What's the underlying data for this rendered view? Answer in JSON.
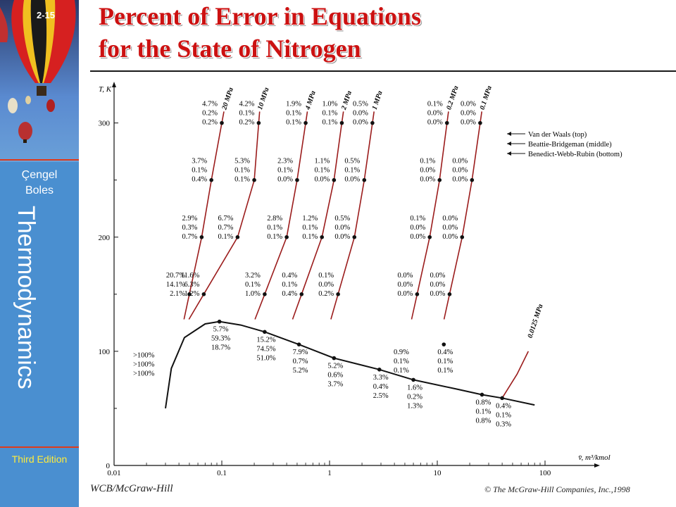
{
  "slide": {
    "number": "2-15",
    "title_line1": "Percent of Error in Equations",
    "title_line2": "for the State of Nitrogen",
    "book_author1": "Çengel",
    "book_author2": "Boles",
    "book_title": "Thermodynamics",
    "edition": "Third Edition",
    "publisher": "WCB/McGraw-Hill",
    "copyright": "© The McGraw-Hill Companies, Inc.,1998"
  },
  "colors": {
    "sidebar": "#4a8fd0",
    "title": "#cc1111",
    "isobar": "#9b1c1c",
    "dome": "#111111",
    "edition": "#ffeb3b"
  },
  "chart_data": {
    "type": "scatter",
    "xlabel": "v̄, m³/kmol",
    "ylabel": "T, K",
    "xscale": "log",
    "xlim": [
      0.01,
      100
    ],
    "ylim": [
      0,
      330
    ],
    "xticks": [
      "0.01",
      "0.1",
      "1",
      "10",
      "100"
    ],
    "yticks": [
      "0",
      "100",
      "200",
      "300"
    ],
    "legend": [
      "Van der Waals (top)",
      "Beattie-Bridgeman (middle)",
      "Benedict-Webb-Rubin (bottom)"
    ],
    "isobars": [
      {
        "label": "20 MPa",
        "points": [
          [
            0.05,
            150
          ],
          [
            0.065,
            200
          ],
          [
            0.08,
            250
          ],
          [
            0.1,
            300
          ]
        ]
      },
      {
        "label": "10 MPa",
        "points": [
          [
            0.068,
            150
          ],
          [
            0.14,
            200
          ],
          [
            0.2,
            250
          ],
          [
            0.22,
            300
          ]
        ]
      },
      {
        "label": "4 MPa",
        "points": [
          [
            0.25,
            150
          ],
          [
            0.4,
            200
          ],
          [
            0.5,
            250
          ],
          [
            0.6,
            300
          ]
        ]
      },
      {
        "label": "2 MPa",
        "points": [
          [
            0.55,
            150
          ],
          [
            0.85,
            200
          ],
          [
            1.1,
            250
          ],
          [
            1.3,
            300
          ]
        ]
      },
      {
        "label": "1 MPa",
        "points": [
          [
            1.2,
            150
          ],
          [
            1.7,
            200
          ],
          [
            2.1,
            250
          ],
          [
            2.5,
            300
          ]
        ]
      },
      {
        "label": "0.2 MPa",
        "points": [
          [
            6.5,
            150
          ],
          [
            8.5,
            200
          ],
          [
            10.5,
            250
          ],
          [
            12.3,
            300
          ]
        ]
      },
      {
        "label": "0.1 MPa",
        "points": [
          [
            13,
            150
          ],
          [
            17,
            200
          ],
          [
            21,
            250
          ],
          [
            25,
            300
          ]
        ]
      },
      {
        "label": "0.0125 MPa",
        "points": []
      }
    ],
    "error_labels": [
      {
        "x": 0.05,
        "y": 150,
        "values": [
          "20.7%",
          "14.1%",
          "2.1%"
        ]
      },
      {
        "x": 0.065,
        "y": 200,
        "values": [
          "2.9%",
          "0.3%",
          "0.7%"
        ]
      },
      {
        "x": 0.08,
        "y": 250,
        "values": [
          "3.7%",
          "0.1%",
          "0.4%"
        ]
      },
      {
        "x": 0.1,
        "y": 300,
        "values": [
          "4.7%",
          "0.2%",
          "0.2%"
        ]
      },
      {
        "x": 0.068,
        "y": 150,
        "values": [
          "11.6%",
          "6.3%",
          "1.2%"
        ]
      },
      {
        "x": 0.14,
        "y": 200,
        "values": [
          "6.7%",
          "0.7%",
          "0.1%"
        ]
      },
      {
        "x": 0.2,
        "y": 250,
        "values": [
          "5.3%",
          "0.1%",
          "0.1%"
        ]
      },
      {
        "x": 0.22,
        "y": 300,
        "values": [
          "4.2%",
          "0.1%",
          "0.2%"
        ]
      },
      {
        "x": 0.25,
        "y": 150,
        "values": [
          "3.2%",
          "0.1%",
          "1.0%"
        ]
      },
      {
        "x": 0.4,
        "y": 200,
        "values": [
          "2.8%",
          "0.1%",
          "0.1%"
        ]
      },
      {
        "x": 0.5,
        "y": 250,
        "values": [
          "2.3%",
          "0.1%",
          "0.0%"
        ]
      },
      {
        "x": 0.6,
        "y": 300,
        "values": [
          "1.9%",
          "0.1%",
          "0.1%"
        ]
      },
      {
        "x": 0.55,
        "y": 150,
        "values": [
          "0.4%",
          "0.1%",
          "0.4%"
        ]
      },
      {
        "x": 0.85,
        "y": 200,
        "values": [
          "1.2%",
          "0.1%",
          "0.1%"
        ]
      },
      {
        "x": 1.1,
        "y": 250,
        "values": [
          "1.1%",
          "0.1%",
          "0.0%"
        ]
      },
      {
        "x": 1.3,
        "y": 300,
        "values": [
          "1.0%",
          "0.1%",
          "0.1%"
        ]
      },
      {
        "x": 1.2,
        "y": 150,
        "values": [
          "0.1%",
          "0.0%",
          "0.2%"
        ]
      },
      {
        "x": 1.7,
        "y": 200,
        "values": [
          "0.5%",
          "0.0%",
          "0.0%"
        ]
      },
      {
        "x": 2.1,
        "y": 250,
        "values": [
          "0.5%",
          "0.1%",
          "0.0%"
        ]
      },
      {
        "x": 2.5,
        "y": 300,
        "values": [
          "0.5%",
          "0.0%",
          "0.0%"
        ]
      },
      {
        "x": 6.5,
        "y": 150,
        "values": [
          "0.0%",
          "0.0%",
          "0.0%"
        ]
      },
      {
        "x": 8.5,
        "y": 200,
        "values": [
          "0.1%",
          "0.0%",
          "0.0%"
        ]
      },
      {
        "x": 10.5,
        "y": 250,
        "values": [
          "0.1%",
          "0.0%",
          "0.0%"
        ]
      },
      {
        "x": 12.3,
        "y": 300,
        "values": [
          "0.1%",
          "0.0%",
          "0.0%"
        ]
      },
      {
        "x": 13,
        "y": 150,
        "values": [
          "0.0%",
          "0.0%",
          "0.0%"
        ]
      },
      {
        "x": 17,
        "y": 200,
        "values": [
          "0.0%",
          "0.0%",
          "0.0%"
        ]
      },
      {
        "x": 21,
        "y": 250,
        "values": [
          "0.0%",
          "0.0%",
          "0.0%"
        ]
      },
      {
        "x": 25,
        "y": 300,
        "values": [
          "0.0%",
          "0.0%",
          "0.0%"
        ]
      },
      {
        "x": 0.095,
        "y": 126,
        "values": [
          "5.7%",
          "59.3%",
          "18.7%"
        ]
      },
      {
        "x": 0.25,
        "y": 117,
        "values": [
          "15.2%",
          "74.5%",
          "51.0%"
        ]
      },
      {
        "x": 0.52,
        "y": 106,
        "values": [
          "7.9%",
          "0.7%",
          "5.2%"
        ]
      },
      {
        "x": 1.1,
        "y": 94,
        "values": [
          "5.2%",
          "0.6%",
          "3.7%"
        ]
      },
      {
        "x": 2.9,
        "y": 84,
        "values": [
          "3.3%",
          "0.4%",
          "2.5%"
        ]
      },
      {
        "x": 4.5,
        "y": 106,
        "values": [
          "0.9%",
          "0.1%",
          "0.1%"
        ]
      },
      {
        "x": 6.0,
        "y": 75,
        "values": [
          "1.6%",
          "0.2%",
          "1.3%"
        ]
      },
      {
        "x": 11.5,
        "y": 106,
        "values": [
          "0.4%",
          "0.1%",
          "0.1%"
        ]
      },
      {
        "x": 26,
        "y": 62,
        "values": [
          "0.8%",
          "0.1%",
          "0.8%"
        ]
      },
      {
        "x": 40,
        "y": 59,
        "values": [
          "0.4%",
          "0.1%",
          "0.3%"
        ]
      },
      {
        "x": 0.015,
        "y": 86,
        "values": [
          ">100%",
          ">100%",
          ">100%"
        ]
      }
    ],
    "saturation_dome": [
      [
        0.03,
        50
      ],
      [
        0.034,
        85
      ],
      [
        0.045,
        112
      ],
      [
        0.07,
        124
      ],
      [
        0.095,
        126
      ],
      [
        0.15,
        123
      ],
      [
        0.25,
        117
      ],
      [
        0.52,
        106
      ],
      [
        1.1,
        94
      ],
      [
        2.9,
        84
      ],
      [
        6.0,
        75
      ],
      [
        15,
        67
      ],
      [
        26,
        62
      ],
      [
        40,
        59
      ],
      [
        80,
        53
      ]
    ]
  }
}
